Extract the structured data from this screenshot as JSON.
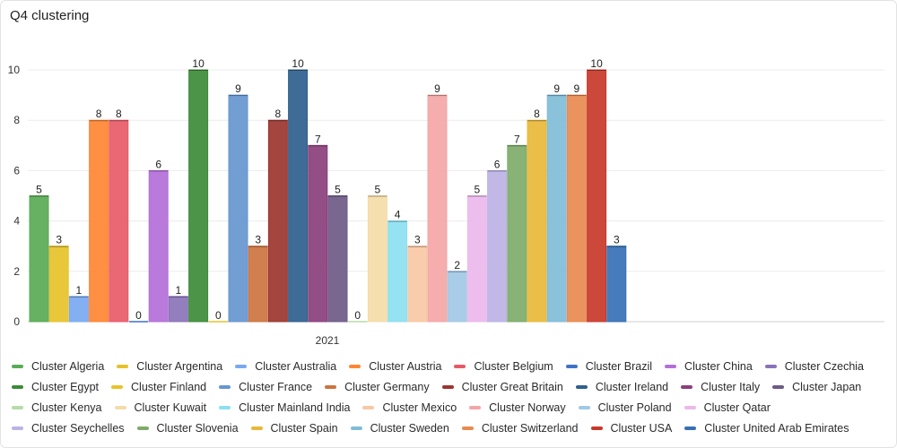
{
  "title": "Q4 clustering",
  "chart_data": {
    "type": "bar",
    "title": "Q4 clustering",
    "categories": [
      "2021"
    ],
    "xlabel": "",
    "ylabel": "",
    "ylim": [
      0,
      10
    ],
    "yticks": [
      0,
      2,
      4,
      6,
      8,
      10
    ],
    "grid": true,
    "legend_position": "bottom",
    "series": [
      {
        "name": "Cluster Algeria",
        "value": 5,
        "color": "#5aab55"
      },
      {
        "name": "Cluster Argentina",
        "value": 3,
        "color": "#e6c22a"
      },
      {
        "name": "Cluster Australia",
        "value": 1,
        "color": "#7aa8f2"
      },
      {
        "name": "Cluster Austria",
        "value": 8,
        "color": "#ff8533"
      },
      {
        "name": "Cluster Belgium",
        "value": 8,
        "color": "#e85a68"
      },
      {
        "name": "Cluster Brazil",
        "value": 0,
        "color": "#3f72c8"
      },
      {
        "name": "Cluster China",
        "value": 6,
        "color": "#b36fd8"
      },
      {
        "name": "Cluster Czechia",
        "value": 1,
        "color": "#8a73b8"
      },
      {
        "name": "Cluster Egypt",
        "value": 10,
        "color": "#3c8b38"
      },
      {
        "name": "Cluster Finland",
        "value": 0,
        "color": "#e8c32a"
      },
      {
        "name": "Cluster France",
        "value": 9,
        "color": "#6696d0"
      },
      {
        "name": "Cluster Germany",
        "value": 3,
        "color": "#cd7440"
      },
      {
        "name": "Cluster Great Britain",
        "value": 8,
        "color": "#9c3530"
      },
      {
        "name": "Cluster Ireland",
        "value": 10,
        "color": "#2f5f8e"
      },
      {
        "name": "Cluster Italy",
        "value": 7,
        "color": "#8a3f7c"
      },
      {
        "name": "Cluster Japan",
        "value": 5,
        "color": "#6e5a87"
      },
      {
        "name": "Cluster Kenya",
        "value": 0,
        "color": "#b6dca8"
      },
      {
        "name": "Cluster Kuwait",
        "value": 5,
        "color": "#f4dca8"
      },
      {
        "name": "Cluster Mainland India",
        "value": 4,
        "color": "#8ce0f2"
      },
      {
        "name": "Cluster Mexico",
        "value": 3,
        "color": "#f8c8a4"
      },
      {
        "name": "Cluster Norway",
        "value": 9,
        "color": "#f4a6a6"
      },
      {
        "name": "Cluster Poland",
        "value": 2,
        "color": "#a2c8e6"
      },
      {
        "name": "Cluster Qatar",
        "value": 5,
        "color": "#ecb8ec"
      },
      {
        "name": "Cluster Seychelles",
        "value": 6,
        "color": "#bcb2e6"
      },
      {
        "name": "Cluster Slovenia",
        "value": 7,
        "color": "#7eab6a"
      },
      {
        "name": "Cluster Spain",
        "value": 8,
        "color": "#e8b838"
      },
      {
        "name": "Cluster Sweden",
        "value": 9,
        "color": "#80bcd8"
      },
      {
        "name": "Cluster Switzerland",
        "value": 9,
        "color": "#e88a50"
      },
      {
        "name": "Cluster USA",
        "value": 10,
        "color": "#c8382a"
      },
      {
        "name": "Cluster United Arab Emirates",
        "value": 3,
        "color": "#3670b6"
      }
    ]
  }
}
